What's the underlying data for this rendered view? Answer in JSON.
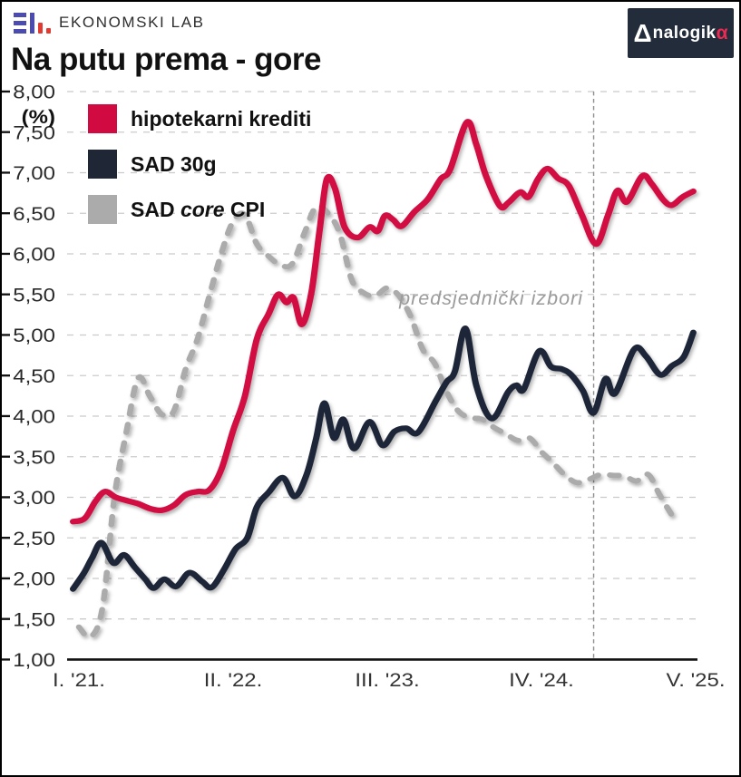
{
  "header": {
    "brand": "EKONOMSKI LAB",
    "badge": {
      "delta": "Δ",
      "mid": "nalogik",
      "alpha": "α"
    }
  },
  "title": "Na putu prema - gore",
  "annotation": "predsjednički izbori",
  "legend": [
    {
      "pre": "hipotekarni krediti",
      "italic": "",
      "post": "",
      "color": "#d20a42"
    },
    {
      "pre": "SAD 30g",
      "italic": "",
      "post": "",
      "color": "#1f2737"
    },
    {
      "pre": "SAD ",
      "italic": "core",
      "post": " CPI",
      "color": "#ababab"
    }
  ],
  "chart_data": {
    "type": "line",
    "title": "Na putu prema - gore",
    "ylabel": "(%)",
    "ylim": [
      1.0,
      8.0
    ],
    "y_tick_step": 0.5,
    "grid": "horizontal-dashed",
    "legend_position": "top-left",
    "x_unit": "months since January 2021",
    "x_ticks": [
      {
        "label": "I. '21.",
        "month": 0
      },
      {
        "label": "II. '22.",
        "month": 13
      },
      {
        "label": "III. '23.",
        "month": 26
      },
      {
        "label": "IV. '24.",
        "month": 39
      },
      {
        "label": "V. '25.",
        "month": 52
      }
    ],
    "event_line": {
      "label": "predsjednički izbori",
      "month": 43.4
    },
    "series": [
      {
        "name": "hipotekarni krediti",
        "color": "#d20a42",
        "style": "solid",
        "points": [
          [
            -0.5,
            2.7
          ],
          [
            0.5,
            2.74
          ],
          [
            1.4,
            2.95
          ],
          [
            2.2,
            3.07
          ],
          [
            3.1,
            3.0
          ],
          [
            4,
            2.96
          ],
          [
            5,
            2.92
          ],
          [
            6,
            2.86
          ],
          [
            7,
            2.84
          ],
          [
            8,
            2.9
          ],
          [
            9,
            3.03
          ],
          [
            10,
            3.07
          ],
          [
            11,
            3.09
          ],
          [
            12,
            3.34
          ],
          [
            13,
            3.82
          ],
          [
            14,
            4.25
          ],
          [
            15,
            4.95
          ],
          [
            16,
            5.26
          ],
          [
            16.8,
            5.5
          ],
          [
            17.5,
            5.4
          ],
          [
            18.1,
            5.46
          ],
          [
            18.8,
            5.13
          ],
          [
            19.6,
            5.52
          ],
          [
            20.3,
            6.3
          ],
          [
            20.9,
            6.92
          ],
          [
            21.6,
            6.8
          ],
          [
            22.4,
            6.33
          ],
          [
            23.5,
            6.2
          ],
          [
            24.5,
            6.33
          ],
          [
            25.2,
            6.28
          ],
          [
            25.8,
            6.47
          ],
          [
            26.5,
            6.42
          ],
          [
            27.2,
            6.34
          ],
          [
            28.3,
            6.52
          ],
          [
            29.4,
            6.67
          ],
          [
            30.5,
            6.92
          ],
          [
            31.3,
            7.04
          ],
          [
            32.7,
            7.62
          ],
          [
            33.5,
            7.35
          ],
          [
            34.3,
            6.97
          ],
          [
            35.5,
            6.59
          ],
          [
            36.2,
            6.63
          ],
          [
            37.2,
            6.76
          ],
          [
            37.9,
            6.7
          ],
          [
            38.7,
            6.92
          ],
          [
            39.5,
            7.05
          ],
          [
            40.4,
            6.93
          ],
          [
            41.3,
            6.84
          ],
          [
            42.4,
            6.48
          ],
          [
            43.6,
            6.12
          ],
          [
            44.6,
            6.47
          ],
          [
            45.4,
            6.78
          ],
          [
            46.2,
            6.64
          ],
          [
            47.5,
            6.96
          ],
          [
            48.3,
            6.86
          ],
          [
            49.3,
            6.66
          ],
          [
            50,
            6.6
          ],
          [
            50.9,
            6.7
          ],
          [
            51.8,
            6.77
          ]
        ]
      },
      {
        "name": "SAD 30g",
        "color": "#1f2737",
        "style": "solid",
        "points": [
          [
            -0.5,
            1.87
          ],
          [
            0.4,
            2.06
          ],
          [
            1.1,
            2.25
          ],
          [
            1.9,
            2.44
          ],
          [
            2.9,
            2.19
          ],
          [
            3.8,
            2.29
          ],
          [
            4.7,
            2.14
          ],
          [
            5.6,
            1.99
          ],
          [
            6.3,
            1.88
          ],
          [
            7.2,
            1.99
          ],
          [
            8.2,
            1.9
          ],
          [
            9.3,
            2.07
          ],
          [
            10.4,
            1.96
          ],
          [
            11.2,
            1.89
          ],
          [
            12.2,
            2.1
          ],
          [
            13.2,
            2.36
          ],
          [
            14.2,
            2.5
          ],
          [
            15,
            2.88
          ],
          [
            16,
            3.06
          ],
          [
            17.2,
            3.24
          ],
          [
            18.2,
            3.01
          ],
          [
            19.2,
            3.28
          ],
          [
            20,
            3.72
          ],
          [
            20.7,
            4.16
          ],
          [
            21.5,
            3.73
          ],
          [
            22.3,
            3.96
          ],
          [
            23.2,
            3.6
          ],
          [
            24.5,
            3.93
          ],
          [
            25.6,
            3.64
          ],
          [
            26.6,
            3.81
          ],
          [
            27.6,
            3.85
          ],
          [
            28.6,
            3.8
          ],
          [
            30.1,
            4.19
          ],
          [
            31,
            4.42
          ],
          [
            31.7,
            4.55
          ],
          [
            32.6,
            5.08
          ],
          [
            33.5,
            4.38
          ],
          [
            34.8,
            3.97
          ],
          [
            36.2,
            4.3
          ],
          [
            36.9,
            4.38
          ],
          [
            37.5,
            4.33
          ],
          [
            38.8,
            4.8
          ],
          [
            39.8,
            4.61
          ],
          [
            40.7,
            4.58
          ],
          [
            41.5,
            4.51
          ],
          [
            42.5,
            4.31
          ],
          [
            43.4,
            4.04
          ],
          [
            44.4,
            4.46
          ],
          [
            45.2,
            4.28
          ],
          [
            46.8,
            4.82
          ],
          [
            47.8,
            4.74
          ],
          [
            49,
            4.51
          ],
          [
            50,
            4.62
          ],
          [
            51,
            4.73
          ],
          [
            51.8,
            5.03
          ]
        ]
      },
      {
        "name": "SAD core CPI",
        "color": "#ababab",
        "style": "dashed",
        "points": [
          [
            0,
            1.4
          ],
          [
            1,
            1.28
          ],
          [
            2,
            1.65
          ],
          [
            3,
            3.0
          ],
          [
            4,
            3.8
          ],
          [
            5,
            4.47
          ],
          [
            6,
            4.24
          ],
          [
            7,
            4.02
          ],
          [
            8,
            4.06
          ],
          [
            9,
            4.58
          ],
          [
            10,
            4.95
          ],
          [
            11,
            5.48
          ],
          [
            12,
            6.0
          ],
          [
            13,
            6.4
          ],
          [
            14,
            6.48
          ],
          [
            15,
            6.12
          ],
          [
            16,
            5.97
          ],
          [
            17,
            5.86
          ],
          [
            18,
            5.88
          ],
          [
            19,
            6.25
          ],
          [
            20,
            6.58
          ],
          [
            21,
            6.5
          ],
          [
            22,
            6.25
          ],
          [
            23,
            5.68
          ],
          [
            24,
            5.52
          ],
          [
            25,
            5.48
          ],
          [
            26,
            5.58
          ],
          [
            27,
            5.48
          ],
          [
            28,
            5.22
          ],
          [
            29,
            4.82
          ],
          [
            30,
            4.65
          ],
          [
            31,
            4.3
          ],
          [
            32,
            4.06
          ],
          [
            33,
            3.98
          ],
          [
            34,
            3.96
          ],
          [
            35,
            3.86
          ],
          [
            36,
            3.78
          ],
          [
            37,
            3.7
          ],
          [
            38,
            3.73
          ],
          [
            39,
            3.56
          ],
          [
            40,
            3.42
          ],
          [
            41,
            3.27
          ],
          [
            42,
            3.18
          ],
          [
            43,
            3.22
          ],
          [
            44,
            3.28
          ],
          [
            45,
            3.27
          ],
          [
            46,
            3.26
          ],
          [
            47,
            3.2
          ],
          [
            48,
            3.28
          ],
          [
            49,
            3.02
          ],
          [
            50,
            2.78
          ]
        ]
      }
    ]
  }
}
